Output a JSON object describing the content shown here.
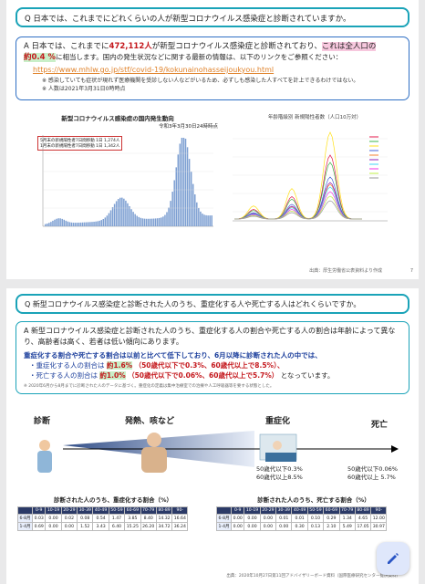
{
  "slide1": {
    "question": "Q 日本では、これまでにどれくらいの人が新型コロナウイルス感染症と診断されていますか。",
    "answer_parts": {
      "a": "A 日本では、これまでに",
      "num": "472,112人",
      "b": "が新型コロナウイルス感染症と診断されており、",
      "c": "これは全人口の",
      "pct": "約0.4 %",
      "d": "に相当します。国内の発生状況などに関する最新の情報は、以下のリンクをご参照ください："
    },
    "url": "https://www.mhlw.go.jp/stf/covid-19/kokunainohasseijoukyou.html",
    "note1": "※ 感染していても症状が現れず医療機関を受診しない人などがいるため、必ずしも感染した人すべてを計上できるわけではない。",
    "note2": "※ 人数は2021年3月31日0時時点",
    "chart_left": {
      "title": "新型コロナウイルス感染症の国内発生動向",
      "date_label": "令和3年3月30日24時時点",
      "legend1": "5月末の新規陽性者7日間移動 1日 1,274人",
      "legend2": "1月末の新規陽性者7日間移動 1日 1,342人"
    },
    "chart_right": {
      "title": "年齢階級別 新規陽性者数（人口10万対）"
    },
    "source": "出典：厚生労働省公表資料より作成",
    "page": "7"
  },
  "slide2": {
    "question": "Q 新型コロナウイルス感染症と診断された人のうち、重症化する人や死亡する人はどれくらいですか。",
    "answer": "A 新型コロナウイルス感染症と診断された人のうち、重症化する人の割合や死亡する人の割合は年齢によって異なり、高齢者は高く、若者は低い傾向にあります。",
    "line2": "重症化する割合や死亡する割合は以前と比べて低下しており、6月以降に診断された人の中では、",
    "bullet1_label": "・重症化する人の割合は",
    "bullet1_val": "約1.6%",
    "bullet1_detail": "（50歳代以下で0.3%、60歳代以上で8.5%）、",
    "bullet2_label": "・死亡する人の割合は",
    "bullet2_val": "約1.0%",
    "bullet2_detail": "（50歳代以下で0.06%、60歳代以上で5.7%）",
    "bullet2_tail": "となっています。",
    "small_note": "※ 2020年6月から8月までに診断された人のデータに基づく。重症化の定義は集中治療室での治療や人工呼吸器等を要する状態とした。",
    "flow": {
      "diagnosis": "診断",
      "symptom": "発熱、咳など",
      "severe": "重症化",
      "death": "死亡",
      "severe_rate1": "50歳代以下0.3%",
      "severe_rate2": "60歳代以上8.5%",
      "death_rate1": "50歳代以下0.06%",
      "death_rate2": "60歳代以上 5.7%"
    },
    "table_left": {
      "title": "診断された人のうち、重症化する割合（%）",
      "headers": [
        "",
        "0-9",
        "10-19",
        "20-29",
        "30-39",
        "40-49",
        "50-59",
        "60-69",
        "70-79",
        "80-89",
        "90-"
      ],
      "rows": [
        [
          "6-8月",
          "0.03",
          "0.00",
          "0.02",
          "0.08",
          "0.54",
          "1.47",
          "3.85",
          "8.40",
          "14.32",
          "16.64"
        ],
        [
          "1-4月",
          "0.69",
          "0.00",
          "0.00",
          "1.52",
          "3.43",
          "6.40",
          "15.25",
          "26.20",
          "34.72",
          "36.24"
        ]
      ]
    },
    "table_right": {
      "title": "診断された人のうち、死亡する割合（%）",
      "headers": [
        "",
        "0-9",
        "10-19",
        "20-29",
        "30-39",
        "40-49",
        "50-59",
        "60-69",
        "70-79",
        "80-89",
        "90-"
      ],
      "rows": [
        [
          "6-8月",
          "0.00",
          "0.00",
          "0.00",
          "0.01",
          "0.01",
          "0.10",
          "0.29",
          "1.34",
          "4.65",
          "12.00"
        ],
        [
          "1-4月",
          "0.00",
          "0.00",
          "0.00",
          "0.00",
          "0.30",
          "0.13",
          "2.10",
          "5.49",
          "17.05",
          "30.97"
        ]
      ]
    },
    "source": "出典：2020年10月27日第11回アドバイザリーボード資料（国際医療研究センター提供資料）"
  }
}
